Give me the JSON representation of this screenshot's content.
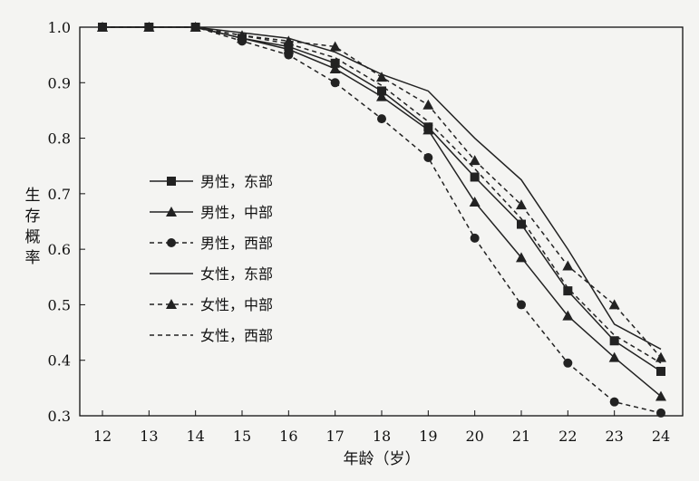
{
  "chart_data": {
    "type": "line",
    "title": "",
    "xlabel": "年龄（岁）",
    "ylabel": "生存概率",
    "xlim": [
      12,
      24
    ],
    "ylim": [
      0.3,
      1.0
    ],
    "grid": false,
    "legend_position": "left-middle",
    "x": [
      12,
      13,
      14,
      15,
      16,
      17,
      18,
      19,
      20,
      21,
      22,
      23,
      24
    ],
    "x_ticks": [
      "12",
      "13",
      "14",
      "15",
      "16",
      "17",
      "18",
      "19",
      "20",
      "21",
      "22",
      "23",
      "24"
    ],
    "y_ticks": [
      "0.3",
      "0.4",
      "0.5",
      "0.6",
      "0.7",
      "0.8",
      "0.9",
      "1.0"
    ],
    "series": [
      {
        "name": "男性，东部",
        "line": "solid",
        "marker": "square",
        "values": [
          1.0,
          1.0,
          1.0,
          0.98,
          0.965,
          0.935,
          0.885,
          0.82,
          0.73,
          0.645,
          0.525,
          0.435,
          0.38
        ]
      },
      {
        "name": "男性，中部",
        "line": "solid",
        "marker": "triangle",
        "values": [
          1.0,
          1.0,
          1.0,
          0.98,
          0.96,
          0.925,
          0.875,
          0.815,
          0.685,
          0.585,
          0.48,
          0.405,
          0.335
        ]
      },
      {
        "name": "男性，西部",
        "line": "dashed",
        "marker": "circle",
        "values": [
          1.0,
          1.0,
          1.0,
          0.975,
          0.95,
          0.9,
          0.835,
          0.765,
          0.62,
          0.5,
          0.395,
          0.325,
          0.305
        ]
      },
      {
        "name": "女性，东部",
        "line": "solid",
        "marker": "none",
        "values": [
          1.0,
          1.0,
          1.0,
          0.99,
          0.98,
          0.955,
          0.915,
          0.885,
          0.8,
          0.725,
          0.6,
          0.465,
          0.42
        ]
      },
      {
        "name": "女性，中部",
        "line": "dashed",
        "marker": "triangle",
        "values": [
          1.0,
          1.0,
          1.0,
          0.985,
          0.975,
          0.965,
          0.91,
          0.86,
          0.76,
          0.68,
          0.57,
          0.5,
          0.405
        ]
      },
      {
        "name": "女性，西部",
        "line": "dashed",
        "marker": "none",
        "values": [
          1.0,
          1.0,
          1.0,
          0.985,
          0.97,
          0.945,
          0.895,
          0.83,
          0.745,
          0.655,
          0.53,
          0.445,
          0.395
        ]
      }
    ]
  }
}
